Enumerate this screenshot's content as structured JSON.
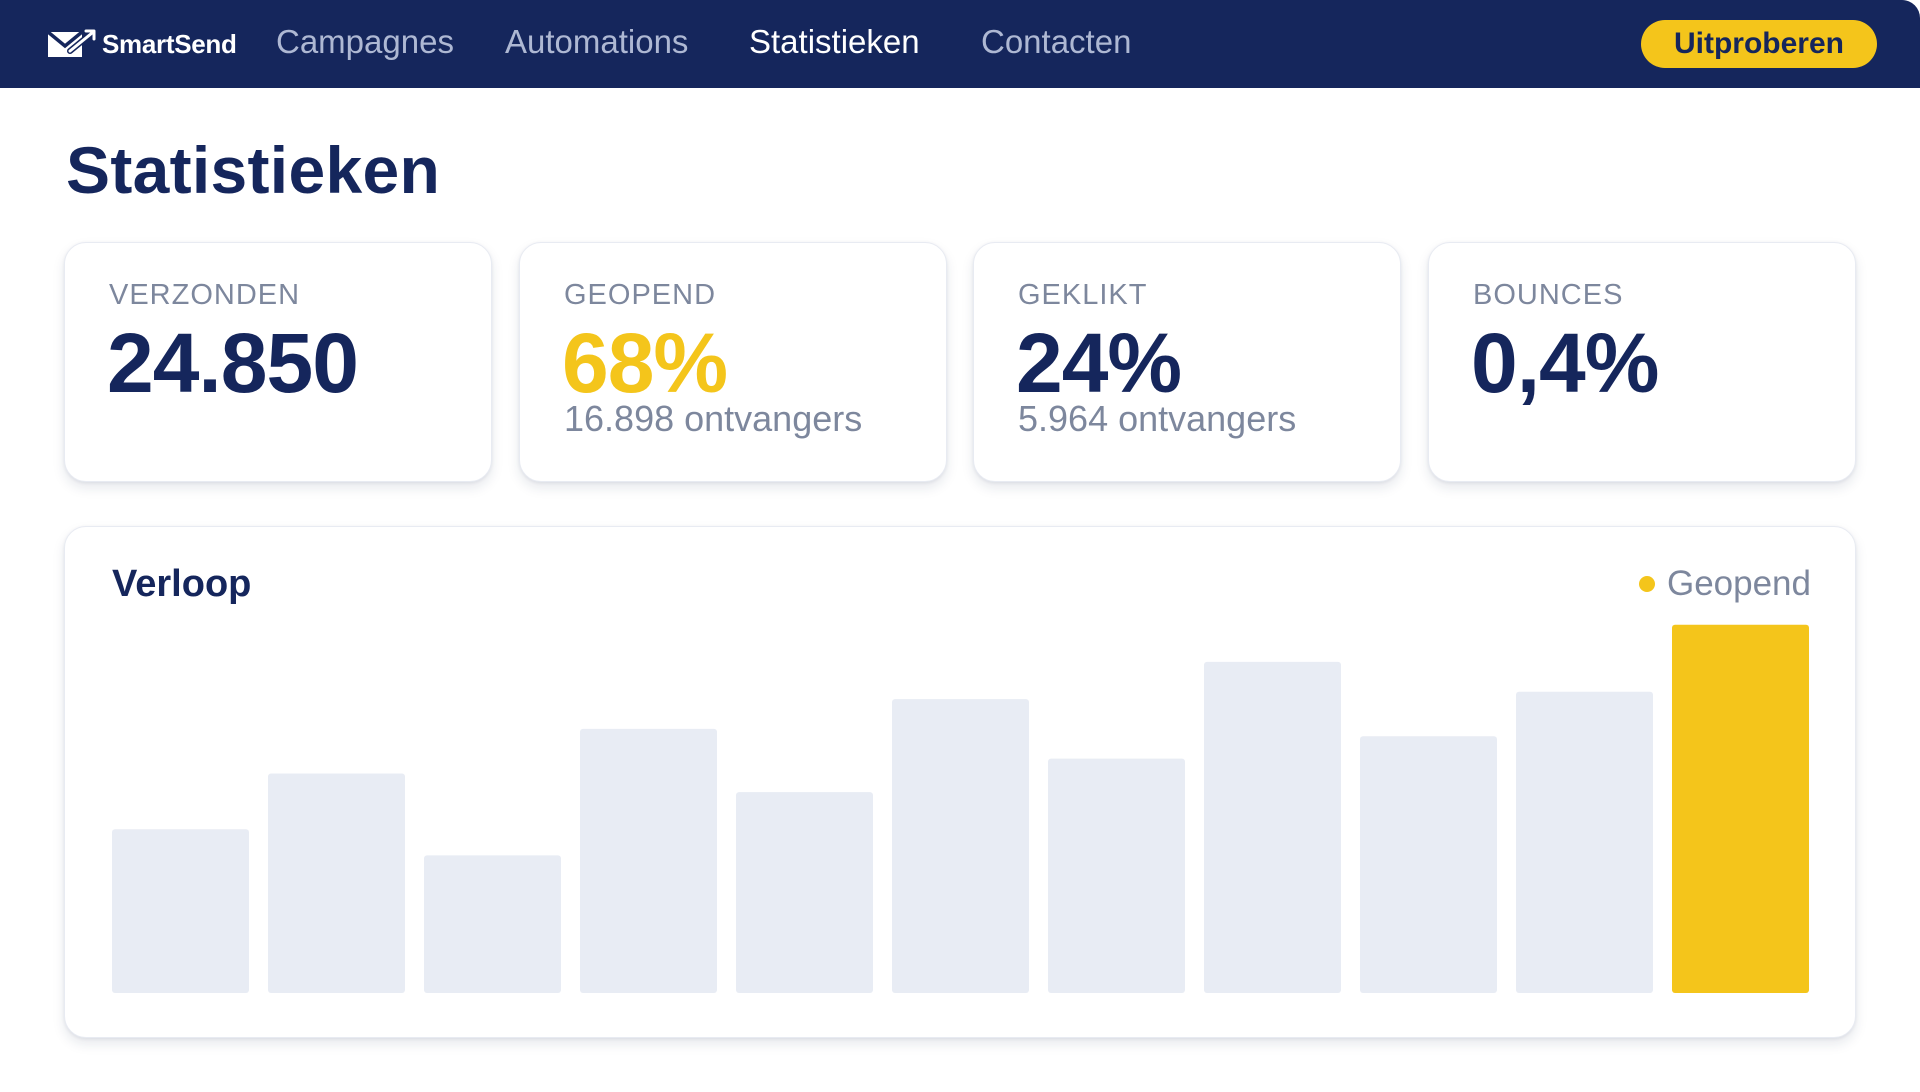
{
  "nav": {
    "brand": "SmartSend",
    "links": [
      {
        "label": "Campagnes",
        "active": false
      },
      {
        "label": "Automations",
        "active": false
      },
      {
        "label": "Statistieken",
        "active": true
      },
      {
        "label": "Contacten",
        "active": false
      }
    ],
    "cta_label": "Uitproberen"
  },
  "page": {
    "title": "Statistieken"
  },
  "stats": [
    {
      "label": "VERZONDEN",
      "value": "24.850",
      "sub": ""
    },
    {
      "label": "GEOPEND",
      "value": "68%",
      "sub": "16.898 ontvangers"
    },
    {
      "label": "GEKLIKT",
      "value": "24%",
      "sub": "5.964 ontvangers"
    },
    {
      "label": "BOUNCES",
      "value": "0,4%",
      "sub": ""
    }
  ],
  "chart": {
    "title": "Verloop",
    "legend": "Geopend"
  },
  "chart_data": {
    "type": "bar",
    "title": "Verloop",
    "categories": [
      "",
      "",
      "",
      "",
      "",
      "",
      "",
      "",
      "",
      "",
      ""
    ],
    "series": [
      {
        "name": "Geopend",
        "values": [
          44,
          59,
          37,
          71,
          54,
          79,
          63,
          89,
          69,
          81,
          99
        ]
      }
    ],
    "ylim": [
      0,
      100
    ],
    "grid": false,
    "legend_position": "top-right",
    "highlight_index": 10,
    "colors": {
      "bar": "#e8ecf4",
      "highlight": "#f4c51b"
    }
  },
  "colors": {
    "nav_bg": "#15265c",
    "accent": "#f4c51b",
    "text_primary": "#15265c",
    "text_muted": "#7d879d"
  }
}
